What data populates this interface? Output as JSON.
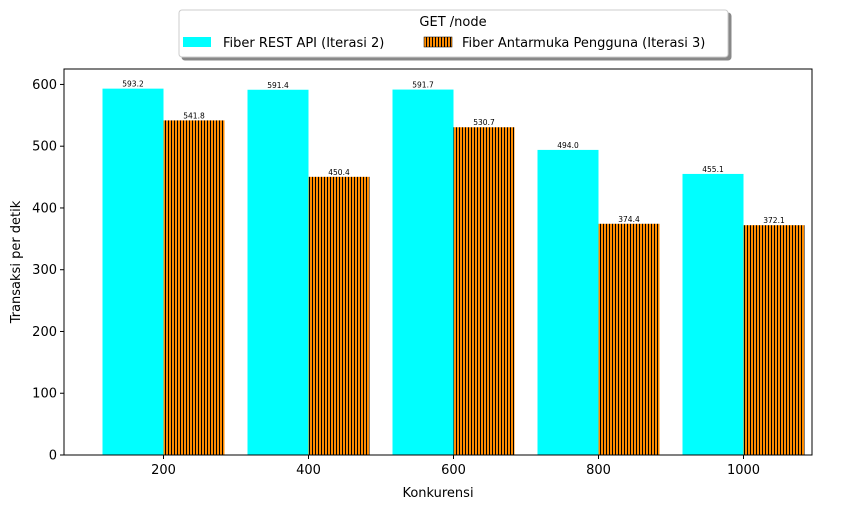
{
  "chart_data": {
    "type": "bar",
    "legend_title": "GET /node",
    "legend_placement": "top-center",
    "categories": [
      "200",
      "400",
      "600",
      "800",
      "1000"
    ],
    "series": [
      {
        "name": "Fiber REST API (Iterasi 2)",
        "values": [
          593.2,
          591.4,
          591.7,
          494.0,
          455.1
        ],
        "color": "#00ffff",
        "pattern": "solid"
      },
      {
        "name": "Fiber Antarmuka Pengguna (Iterasi 3)",
        "values": [
          541.8,
          450.4,
          530.7,
          374.4,
          372.1
        ],
        "color": "#ff8c00",
        "pattern": "vertical-hatch-black"
      }
    ],
    "value_labels": [
      [
        "593.2",
        "591.4",
        "591.7",
        "494.0",
        "455.1"
      ],
      [
        "541.8",
        "450.4",
        "530.7",
        "374.4",
        "372.1"
      ]
    ],
    "xlabel": "Konkurensi",
    "ylabel": "Transaksi per detik",
    "ylim": [
      0,
      625
    ],
    "yticks": [
      "0",
      "100",
      "200",
      "300",
      "400",
      "500",
      "600"
    ],
    "grid": false
  }
}
